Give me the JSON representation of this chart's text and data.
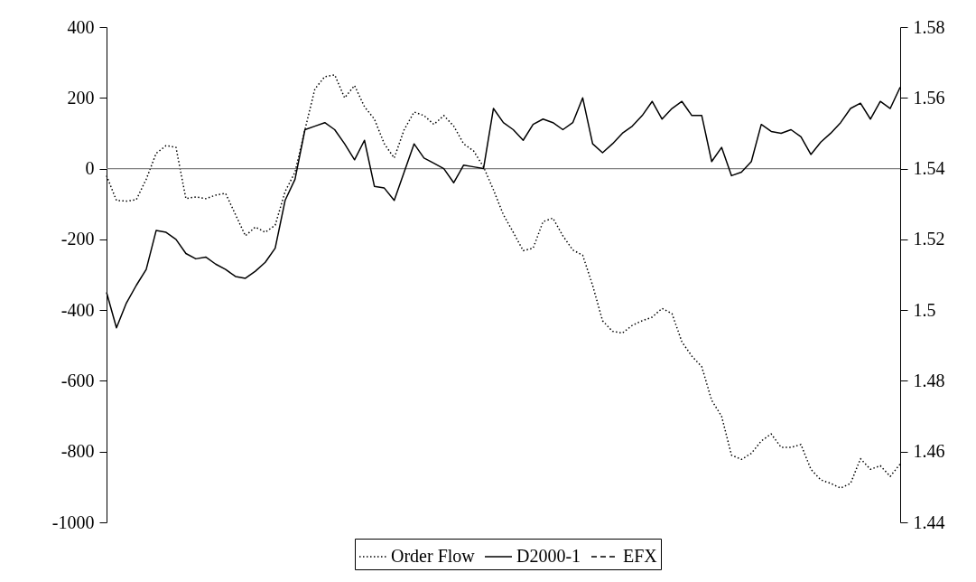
{
  "chart_data": {
    "type": "line",
    "categories": [
      null,
      null,
      null,
      null,
      null,
      null,
      null,
      null,
      null,
      null,
      null,
      null,
      null,
      null,
      null,
      null,
      null,
      null,
      null,
      null,
      null,
      null,
      null,
      null,
      null,
      null,
      null,
      null,
      null,
      null,
      null,
      null,
      null,
      null,
      null,
      null,
      null,
      null,
      null,
      null,
      null,
      null,
      null,
      null,
      null,
      null,
      null,
      null,
      null,
      null,
      null,
      null,
      null,
      null,
      null,
      null,
      null,
      null,
      null,
      null,
      null,
      null,
      null,
      null,
      null,
      null,
      null,
      null,
      null,
      null,
      null,
      null,
      null,
      null,
      null,
      null,
      null,
      null,
      null,
      null,
      null
    ],
    "series": [
      {
        "name": "Order Flow",
        "color": "#000000",
        "line_style": "dotted",
        "values": [
          -20,
          -90,
          -92,
          -88,
          -30,
          43,
          65,
          60,
          -85,
          -80,
          -85,
          -75,
          -70,
          -130,
          -190,
          -165,
          -180,
          -160,
          -65,
          -10,
          110,
          225,
          260,
          265,
          200,
          235,
          175,
          140,
          70,
          30,
          110,
          160,
          150,
          125,
          150,
          120,
          70,
          50,
          5,
          -60,
          -130,
          -180,
          -232,
          -225,
          -150,
          -140,
          -190,
          -230,
          -245,
          -330,
          -430,
          -460,
          -465,
          -443,
          -430,
          -420,
          -395,
          -410,
          -490,
          -530,
          -560,
          -655,
          -700,
          -810,
          -822,
          -805,
          -770,
          -750,
          -788,
          -788,
          -780,
          -850,
          -880,
          -890,
          -903,
          -890,
          -820,
          -850,
          -840,
          -870,
          -835
        ]
      },
      {
        "name": "D2000-1",
        "color": "#000000",
        "line_style": "solid",
        "axis": "y2",
        "values": [
          1.505,
          1.495,
          1.502,
          1.507,
          1.5115,
          1.5225,
          1.522,
          1.52,
          1.516,
          1.5145,
          1.515,
          1.513,
          1.5115,
          1.5095,
          1.509,
          1.511,
          1.5135,
          1.5175,
          1.531,
          1.537,
          1.551,
          1.552,
          1.553,
          1.551,
          1.547,
          1.5425,
          1.548,
          1.535,
          1.5345,
          1.531,
          1.539,
          1.547,
          1.543,
          1.5415,
          1.54,
          1.536,
          1.541,
          1.5405,
          1.54,
          1.557,
          1.553,
          1.551,
          1.548,
          1.5525,
          1.554,
          1.553,
          1.551,
          1.553,
          1.56,
          1.547,
          1.5445,
          1.547,
          1.55,
          1.552,
          1.555,
          1.559,
          1.554,
          1.557,
          1.559,
          1.555,
          1.555,
          1.542,
          1.546,
          1.538,
          1.539,
          1.542,
          1.5525,
          1.5505,
          1.55,
          1.551,
          1.549,
          1.544,
          1.5475,
          1.55,
          1.553,
          1.557,
          1.5585,
          1.554,
          1.559,
          1.557,
          1.563
        ]
      },
      {
        "name": "EFX",
        "color": "#000000",
        "line_style": "dashed",
        "axis": "y2",
        "values": [
          null,
          null,
          null,
          null,
          null,
          null,
          null,
          null,
          null,
          null,
          null,
          null,
          null,
          null,
          null,
          null,
          null,
          null,
          null,
          null,
          null,
          null,
          null,
          null,
          null,
          null,
          null,
          null,
          null,
          null,
          null,
          null,
          null,
          null,
          null,
          null,
          null,
          null,
          null,
          null,
          null,
          null,
          null,
          null,
          null,
          null,
          null,
          null,
          null,
          null,
          null,
          null,
          null,
          null,
          null,
          null,
          null,
          null,
          null,
          null,
          null,
          null,
          null,
          null,
          null,
          null,
          null,
          null,
          null,
          null,
          null,
          null,
          null,
          null,
          null,
          null,
          null,
          null,
          null,
          null,
          null
        ]
      }
    ],
    "ylim": [
      -1000,
      400
    ],
    "yticks": [
      -1000,
      -800,
      -600,
      -400,
      -200,
      0,
      200,
      400
    ],
    "y2lim": [
      1.44,
      1.58
    ],
    "y2ticks": [
      1.44,
      1.46,
      1.48,
      1.5,
      1.52,
      1.54,
      1.56,
      1.58
    ],
    "ref_lines": [
      {
        "axis": "y",
        "value": 0,
        "color": "#808080"
      }
    ],
    "grid": false,
    "legend": "bottom",
    "tick_labels": "y"
  }
}
